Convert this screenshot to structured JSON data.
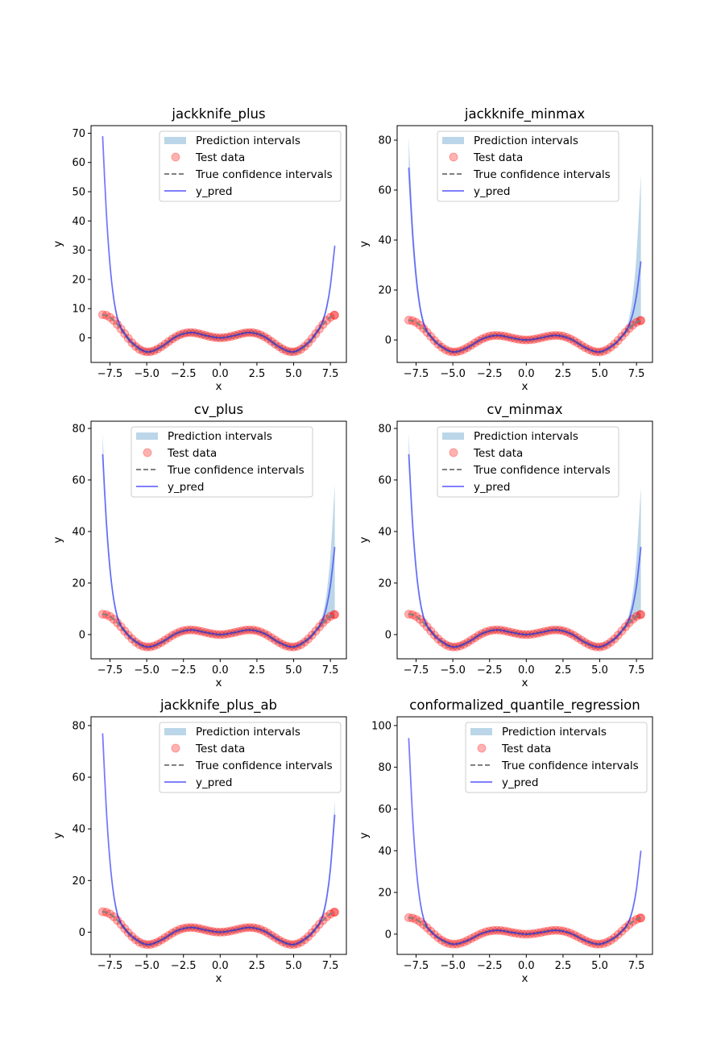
{
  "colors": {
    "prediction_interval": "#1f77b4",
    "test_data": "#ff0000",
    "true_ci": "#808080",
    "y_pred": "#0000ff"
  },
  "legend_labels": [
    "Prediction intervals",
    "Test data",
    "True confidence intervals",
    "y_pred"
  ],
  "shared": {
    "xlabel": "x",
    "ylabel": "y",
    "xlim": [
      -8.79,
      8.59
    ],
    "xticks": [
      -7.5,
      -5.0,
      -2.5,
      0.0,
      2.5,
      5.0,
      7.5
    ],
    "xtick_labels": [
      "−7.5",
      "−5.0",
      "−2.5",
      "0.0",
      "2.5",
      "5.0",
      "7.5"
    ],
    "x_grid": [
      -8,
      -7.75,
      -7.5,
      -7.25,
      -7,
      -6.75,
      -6.5,
      -6,
      -5,
      -4,
      -3,
      -2,
      -1,
      0,
      1,
      2,
      3,
      4,
      5,
      6,
      6.5,
      6.75,
      7,
      7.25,
      7.5,
      7.8
    ],
    "test_data": {
      "x": [
        -8,
        -7.75,
        -7.5,
        -7.25,
        -7,
        -6.75,
        -6.5,
        -6.25,
        -6,
        -5.75,
        -5.5,
        -5.25,
        -5,
        -4.75,
        -4.5,
        -4.25,
        -4,
        -3.75,
        -3.5,
        -3.25,
        -3,
        -2.75,
        -2.5,
        -2.25,
        -2,
        -1.75,
        -1.5,
        -1.25,
        -1,
        -0.75,
        -0.5,
        -0.25,
        0,
        0.25,
        0.5,
        0.75,
        1,
        1.25,
        1.5,
        1.75,
        2,
        2.25,
        2.5,
        2.75,
        3,
        3.25,
        3.5,
        3.75,
        4,
        4.25,
        4.5,
        4.75,
        5,
        5.25,
        5.5,
        5.75,
        6,
        6.25,
        6.5,
        6.75,
        7,
        7.25,
        7.5,
        7.75,
        7.8
      ],
      "y": [
        7.92,
        7.71,
        7.04,
        5.97,
        4.6,
        3.04,
        1.4,
        -0.21,
        -1.68,
        -2.92,
        -3.88,
        -4.51,
        -4.79,
        -4.75,
        -4.4,
        -3.8,
        -3.03,
        -2.14,
        -1.23,
        -0.35,
        0.42,
        1.05,
        1.5,
        1.75,
        1.82,
        1.72,
        1.5,
        1.19,
        0.84,
        0.51,
        0.24,
        0.06,
        0,
        0.06,
        0.24,
        0.51,
        0.84,
        1.19,
        1.5,
        1.72,
        1.82,
        1.75,
        1.5,
        1.05,
        0.42,
        -0.35,
        -1.23,
        -2.14,
        -3.03,
        -3.8,
        -4.4,
        -4.75,
        -4.79,
        -4.51,
        -3.88,
        -2.92,
        -1.68,
        -0.21,
        1.4,
        3.04,
        4.6,
        5.97,
        7.04,
        7.71,
        7.79
      ]
    }
  },
  "chart_data": [
    {
      "type": "line",
      "title": "jackknife_plus",
      "ylim": [
        -8.4,
        72.6
      ],
      "yticks": [
        0,
        10,
        20,
        30,
        40,
        50,
        60,
        70
      ],
      "legend_position": "upper right",
      "y_pred": [
        69.0,
        43.09,
        25.13,
        13.61,
        6.86,
        3.32,
        1.4,
        -1.68,
        -4.79,
        -3.03,
        0.42,
        1.82,
        0.84,
        0,
        0.84,
        1.82,
        0.42,
        -3.03,
        -4.79,
        -1.68,
        1.4,
        3.21,
        5.95,
        10.52,
        17.82,
        31.49
      ],
      "interval_lower": [
        68.0,
        42.09,
        24.13,
        12.61,
        5.86,
        2.32,
        0.4,
        -2.68,
        -5.79,
        -4.03,
        -0.58,
        0.82,
        -0.16,
        -1,
        -0.16,
        0.82,
        -0.58,
        -4.03,
        -5.79,
        -2.68,
        0.4,
        2.21,
        4.95,
        9.52,
        16.82,
        30.49
      ],
      "interval_upper": [
        70.0,
        44.09,
        26.13,
        14.61,
        7.86,
        4.32,
        2.4,
        -0.68,
        -3.79,
        -2.03,
        1.42,
        2.82,
        1.84,
        1,
        1.84,
        2.82,
        1.42,
        -2.03,
        -3.79,
        -0.68,
        2.4,
        4.21,
        6.95,
        11.52,
        18.82,
        32.49
      ]
    },
    {
      "type": "line",
      "title": "jackknife_minmax",
      "ylim": [
        -9.0,
        85.8
      ],
      "yticks": [
        0,
        20,
        40,
        60,
        80
      ],
      "legend_position": "upper center",
      "y_pred": [
        69.0,
        43.09,
        25.13,
        13.61,
        6.86,
        3.32,
        1.4,
        -1.68,
        -4.79,
        -3.03,
        0.42,
        1.82,
        0.84,
        0,
        0.84,
        1.82,
        0.42,
        -3.03,
        -4.79,
        -1.68,
        1.4,
        3.21,
        5.95,
        10.52,
        17.82,
        31.49
      ],
      "interval_lower": [
        68.0,
        42.09,
        24.13,
        12.61,
        5.86,
        2.32,
        0.4,
        -2.68,
        -5.79,
        -4.03,
        -0.58,
        0.82,
        -0.16,
        -1,
        -0.16,
        0.82,
        -0.58,
        -4.03,
        -5.79,
        -2.68,
        0.4,
        2.04,
        3.6,
        4.97,
        6.04,
        6.79
      ],
      "interval_upper": [
        81.0,
        50.46,
        29.39,
        15.99,
        8.27,
        4.37,
        2.4,
        -0.68,
        -3.79,
        -2.03,
        1.42,
        2.82,
        1.84,
        1,
        1.84,
        2.82,
        1.42,
        -2.03,
        -3.79,
        -0.68,
        2.4,
        4.45,
        8.86,
        17.95,
        34.06,
        66.0
      ]
    },
    {
      "type": "line",
      "title": "cv_plus",
      "ylim": [
        -9.4,
        82.8
      ],
      "yticks": [
        0,
        20,
        40,
        60,
        80
      ],
      "legend_position": "upper center",
      "y_pred": [
        70.0,
        43.66,
        25.42,
        13.73,
        6.9,
        3.33,
        1.4,
        -1.68,
        -4.79,
        -3.03,
        0.42,
        1.82,
        0.84,
        0,
        0.84,
        1.82,
        0.42,
        -3.03,
        -4.79,
        -1.68,
        1.4,
        3.23,
        6.09,
        11.0,
        18.97,
        34.0
      ],
      "interval_lower": [
        69.0,
        42.66,
        24.42,
        12.73,
        5.9,
        2.33,
        0.4,
        -2.68,
        -5.79,
        -4.03,
        -0.58,
        0.82,
        -0.16,
        -1,
        -0.16,
        0.82,
        -0.58,
        -4.03,
        -5.79,
        -2.68,
        0.4,
        2.04,
        3.6,
        4.97,
        6.04,
        6.79
      ],
      "interval_upper": [
        78.0,
        48.71,
        28.49,
        15.61,
        8.16,
        4.36,
        2.4,
        -0.68,
        -3.79,
        -2.03,
        1.42,
        2.82,
        1.84,
        1,
        1.84,
        2.82,
        1.42,
        -2.03,
        -3.79,
        -0.68,
        2.4,
        4.39,
        8.4,
        16.42,
        30.44,
        58.0
      ]
    },
    {
      "type": "line",
      "title": "cv_minmax",
      "ylim": [
        -9.4,
        82.8
      ],
      "yticks": [
        0,
        20,
        40,
        60,
        80
      ],
      "legend_position": "upper center",
      "y_pred": [
        70.0,
        43.66,
        25.42,
        13.73,
        6.9,
        3.33,
        1.4,
        -1.68,
        -4.79,
        -3.03,
        0.42,
        1.82,
        0.84,
        0,
        0.84,
        1.82,
        0.42,
        -3.03,
        -4.79,
        -1.68,
        1.4,
        3.23,
        6.09,
        11.0,
        18.97,
        34.0
      ],
      "interval_lower": [
        69.0,
        42.66,
        24.42,
        12.73,
        5.9,
        2.33,
        0.4,
        -2.68,
        -5.79,
        -4.03,
        -0.58,
        0.82,
        -0.16,
        -1,
        -0.16,
        0.82,
        -0.58,
        -4.03,
        -5.79,
        -2.68,
        0.4,
        2.04,
        3.6,
        4.97,
        6.04,
        6.79
      ],
      "interval_upper": [
        78.0,
        48.71,
        28.49,
        15.61,
        8.16,
        4.36,
        2.4,
        -0.68,
        -3.79,
        -2.03,
        1.42,
        2.82,
        1.84,
        1,
        1.84,
        2.82,
        1.42,
        -2.03,
        -3.79,
        -0.68,
        2.4,
        4.39,
        8.34,
        16.22,
        29.98,
        57.0
      ]
    },
    {
      "type": "line",
      "title": "jackknife_plus_ab",
      "ylim": [
        -8.6,
        83.4
      ],
      "yticks": [
        0,
        20,
        40,
        60,
        80
      ],
      "legend_position": "upper right",
      "y_pred": [
        77.0,
        47.71,
        27.49,
        14.61,
        7.16,
        3.36,
        1.4,
        -1.68,
        -4.79,
        -3.03,
        0.42,
        1.82,
        0.84,
        0,
        0.84,
        1.82,
        0.42,
        -3.03,
        -4.79,
        -1.68,
        1.4,
        3.31,
        6.75,
        13.21,
        24.2,
        45.5
      ],
      "interval_lower": [
        76.0,
        46.71,
        26.49,
        13.61,
        6.16,
        2.36,
        0.4,
        -2.68,
        -5.79,
        -4.03,
        -0.58,
        0.82,
        -0.16,
        -1,
        -0.16,
        0.82,
        -0.58,
        -4.03,
        -5.79,
        -2.68,
        0.4,
        2.31,
        5.75,
        12.21,
        23.2,
        44.5
      ],
      "interval_upper": [
        78.0,
        48.71,
        28.49,
        15.61,
        8.16,
        4.36,
        2.4,
        -0.68,
        -3.79,
        -2.03,
        1.42,
        2.82,
        1.84,
        1,
        1.84,
        2.82,
        1.42,
        -2.03,
        -3.79,
        -0.68,
        2.4,
        4.34,
        8.01,
        15.07,
        27.25,
        51.0
      ]
    },
    {
      "type": "line",
      "title": "conformalized_quantile_regression",
      "ylim": [
        -9.7,
        104.2
      ],
      "yticks": [
        0,
        20,
        40,
        60,
        80,
        100
      ],
      "legend_position": "upper right",
      "y_pred": [
        94.0,
        57.56,
        32.52,
        16.73,
        7.79,
        3.44,
        1.4,
        -1.68,
        -4.79,
        -3.03,
        0.42,
        1.82,
        0.84,
        0,
        0.84,
        1.82,
        0.42,
        -3.03,
        -4.79,
        -1.68,
        1.4,
        3.27,
        6.44,
        12.15,
        21.7,
        40.0
      ],
      "interval_lower": [
        93.0,
        56.56,
        31.52,
        15.73,
        6.79,
        2.44,
        0.4,
        -2.68,
        -5.79,
        -4.03,
        -0.58,
        0.82,
        -0.16,
        -1,
        -0.16,
        0.82,
        -0.58,
        -4.03,
        -5.79,
        -2.68,
        0.4,
        2.27,
        5.44,
        11.15,
        20.7,
        39.0
      ],
      "interval_upper": [
        95.0,
        58.56,
        33.52,
        17.73,
        8.79,
        4.44,
        2.4,
        -0.68,
        -3.79,
        -2.03,
        1.42,
        2.82,
        1.84,
        1,
        1.84,
        2.82,
        1.42,
        -2.03,
        -3.79,
        -0.68,
        2.4,
        4.27,
        7.44,
        13.15,
        22.7,
        41.0
      ]
    }
  ]
}
